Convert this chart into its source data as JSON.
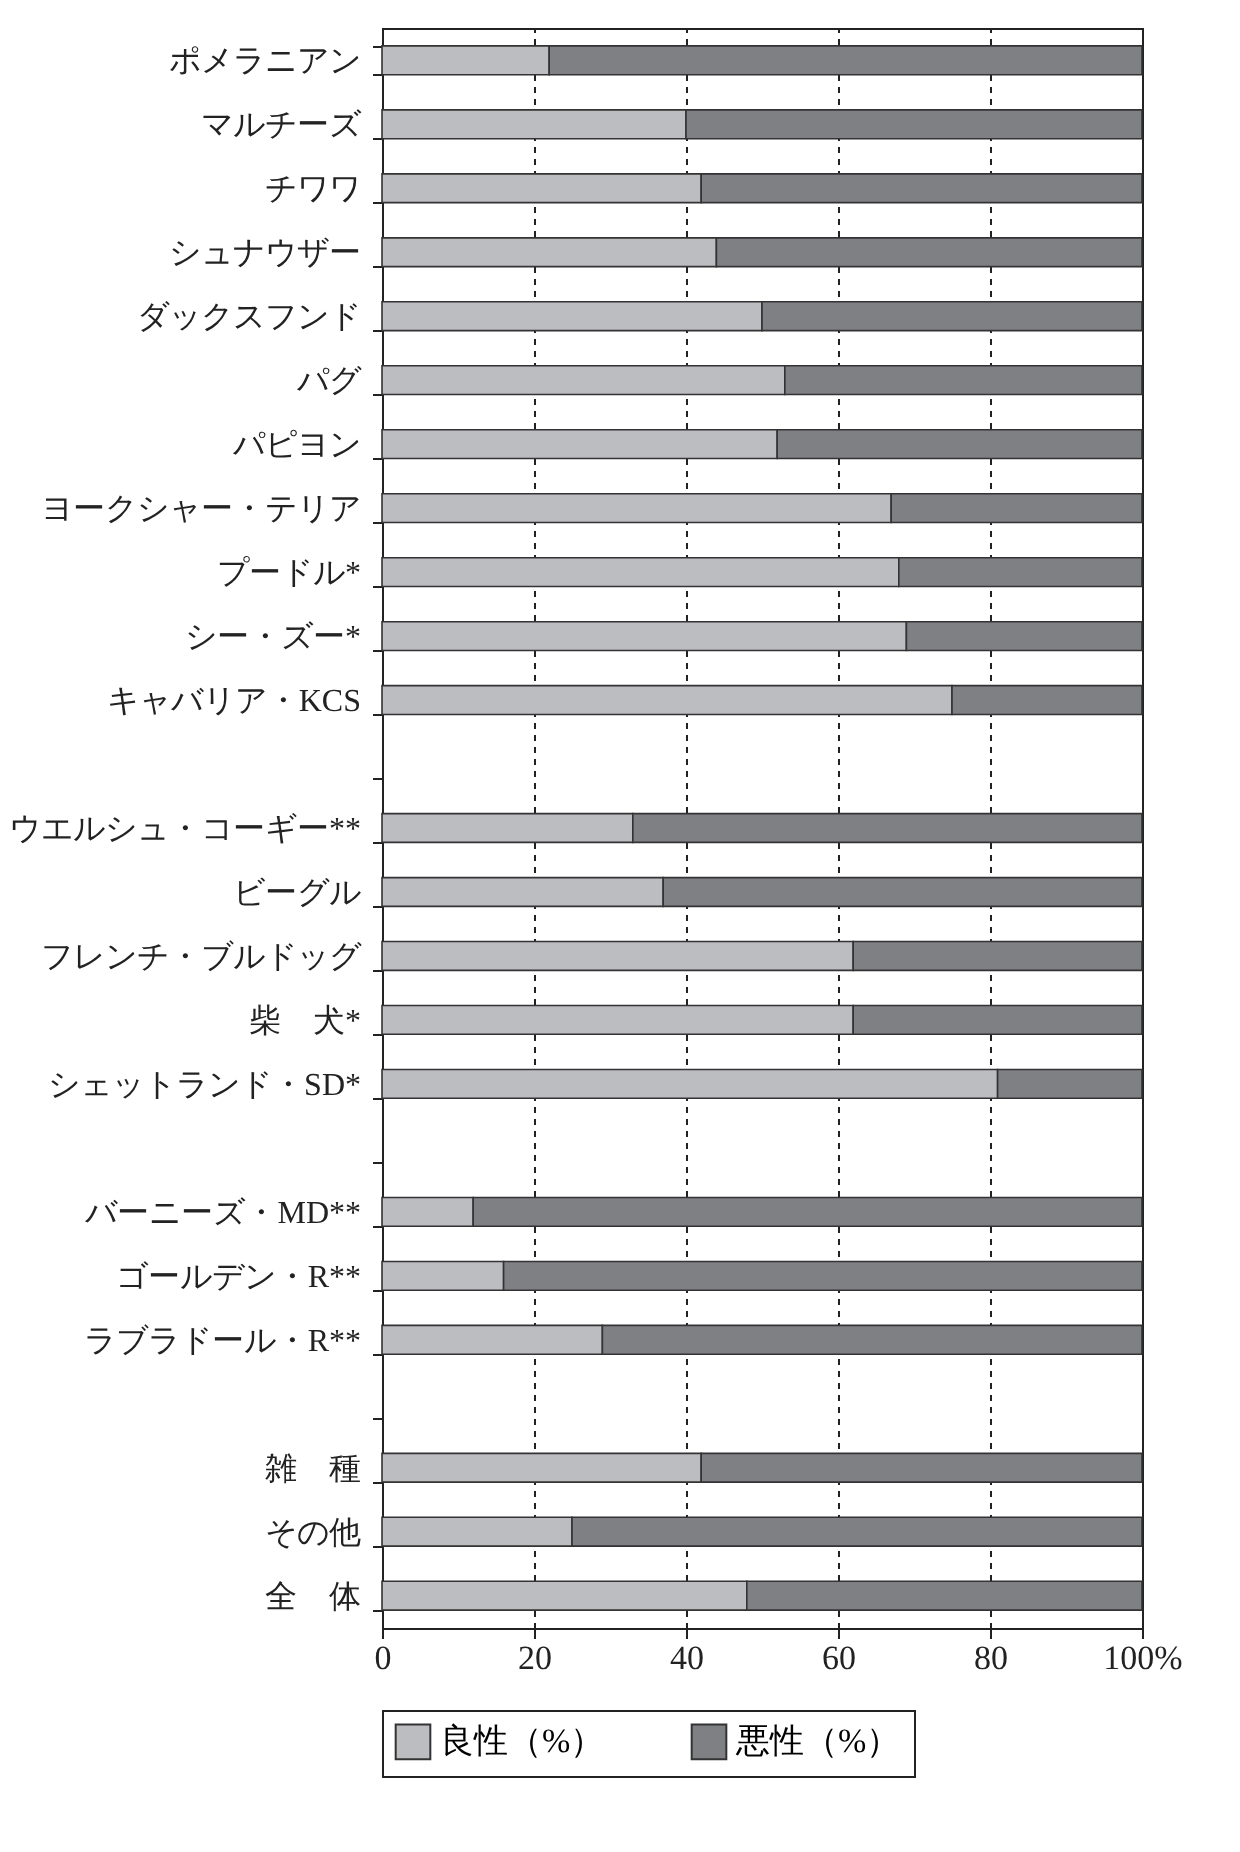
{
  "chart_data": {
    "type": "bar",
    "orientation": "horizontal",
    "stacked": true,
    "categories": [
      "ポメラニアン",
      "マルチーズ",
      "チワワ",
      "シュナウザー",
      "ダックスフンド",
      "パグ",
      "パピヨン",
      "ヨークシャー・テリア",
      "プードル*",
      "シー・ズー*",
      "キャバリア・KCS",
      null,
      "ウエルシュ・コーギー**",
      "ビーグル",
      "フレンチ・ブルドッグ",
      "柴　犬*",
      "シェットランド・SD*",
      null,
      "バーニーズ・MD**",
      "ゴールデン・R**",
      "ラブラドール・R**",
      null,
      "雑　種",
      "その他",
      "全　体"
    ],
    "series": [
      {
        "name": "良性（%）",
        "color": "#bcbdc0",
        "values": [
          22,
          40,
          42,
          44,
          50,
          53,
          52,
          67,
          68,
          69,
          75,
          null,
          33,
          37,
          62,
          62,
          81,
          null,
          12,
          16,
          29,
          null,
          42,
          25,
          48
        ]
      },
      {
        "name": "悪性（%）",
        "color": "#7f8084",
        "values": [
          78,
          60,
          58,
          56,
          50,
          47,
          48,
          33,
          32,
          31,
          25,
          null,
          67,
          63,
          38,
          38,
          19,
          null,
          88,
          84,
          71,
          null,
          58,
          75,
          52
        ]
      }
    ],
    "xlim": [
      0,
      100
    ],
    "xticks": [
      0,
      20,
      40,
      60,
      80,
      {
        "value": 100,
        "label": "100%"
      }
    ],
    "grid": "x",
    "legend": "bottom"
  }
}
